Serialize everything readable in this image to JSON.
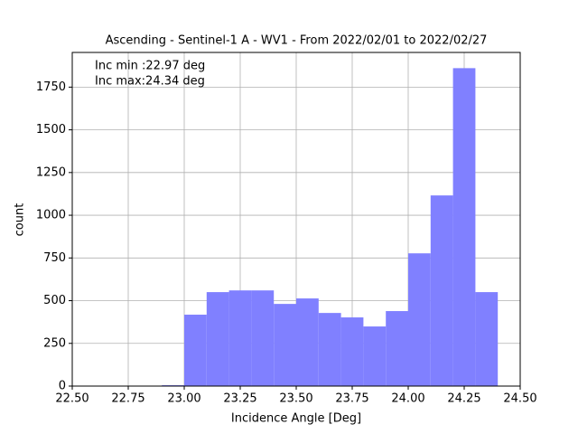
{
  "chart_data": {
    "type": "histogram",
    "title": "Ascending - Sentinel-1 A - WV1 - From 2022/02/01 to 2022/02/27",
    "xlabel": "Incidence Angle [Deg]",
    "ylabel": "count",
    "annotations": [
      "Inc min :22.97 deg",
      "Inc max:24.34 deg"
    ],
    "bins": [
      22.9,
      23.0,
      23.1,
      23.2,
      23.3,
      23.4,
      23.5,
      23.6,
      23.7,
      23.8,
      23.9,
      24.0,
      24.1,
      24.2,
      24.3,
      24.4
    ],
    "counts": [
      5,
      418,
      550,
      560,
      560,
      481,
      513,
      428,
      402,
      349,
      439,
      777,
      1116,
      1861,
      550
    ],
    "color": "#8080ff",
    "xlim": [
      22.5,
      24.5
    ],
    "xticks": [
      {
        "value": 22.5,
        "label": "22.50"
      },
      {
        "value": 22.75,
        "label": "22.75"
      },
      {
        "value": 23,
        "label": "23.00"
      },
      {
        "value": 23.25,
        "label": "23.25"
      },
      {
        "value": 23.5,
        "label": "23.50"
      },
      {
        "value": 23.75,
        "label": "23.75"
      },
      {
        "value": 24,
        "label": "24.00"
      },
      {
        "value": 24.25,
        "label": "24.25"
      },
      {
        "value": 24.5,
        "label": "24.50"
      }
    ],
    "ylim": [
      0,
      1953
    ],
    "yticks": [
      0,
      250,
      500,
      750,
      1000,
      1250,
      1500,
      1750
    ],
    "grid": true
  }
}
